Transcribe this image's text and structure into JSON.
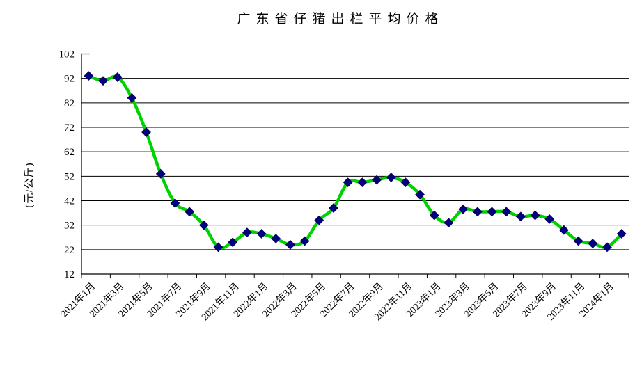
{
  "chart_data": {
    "type": "line",
    "title": "广东省仔猪出栏平均价格",
    "ylabel": "(元/公斤)",
    "x": [
      "2021年1月",
      "2021年2月",
      "2021年3月",
      "2021年4月",
      "2021年5月",
      "2021年6月",
      "2021年7月",
      "2021年8月",
      "2021年9月",
      "2021年10月",
      "2021年11月",
      "2021年12月",
      "2022年1月",
      "2022年2月",
      "2022年3月",
      "2022年4月",
      "2022年5月",
      "2022年6月",
      "2022年7月",
      "2022年8月",
      "2022年9月",
      "2022年10月",
      "2022年11月",
      "2022年12月",
      "2023年1月",
      "2023年2月",
      "2023年3月",
      "2023年4月",
      "2023年5月",
      "2023年6月",
      "2023年7月",
      "2023年8月",
      "2023年9月",
      "2023年10月",
      "2023年11月",
      "2023年12月",
      "2024年1月",
      "2024年2月"
    ],
    "values": [
      93,
      91,
      92.5,
      84,
      70,
      53,
      41,
      37.5,
      32,
      23,
      25,
      29,
      28.5,
      26.5,
      24,
      25.5,
      34,
      39,
      49.5,
      49.5,
      50.5,
      51.5,
      49.5,
      44.5,
      36,
      33,
      38.5,
      37.5,
      37.5,
      37.5,
      35.5,
      36,
      34.5,
      30,
      25.5,
      24.5,
      23,
      28.5
    ],
    "ylim": [
      12,
      102
    ],
    "yticks": [
      102,
      92,
      82,
      72,
      62,
      52,
      42,
      32,
      22,
      12
    ],
    "xtick_label_step": 2,
    "grid": "horizontal",
    "legend_position": "none",
    "smooth_line": true,
    "marker_shape": "diamond",
    "colors": {
      "line": "#00D200",
      "marker_fill": "#000080",
      "marker_stroke": "#000060",
      "axis": "#000000",
      "grid": "#000000",
      "text": "#000000",
      "background": "#FFFFFF"
    }
  }
}
